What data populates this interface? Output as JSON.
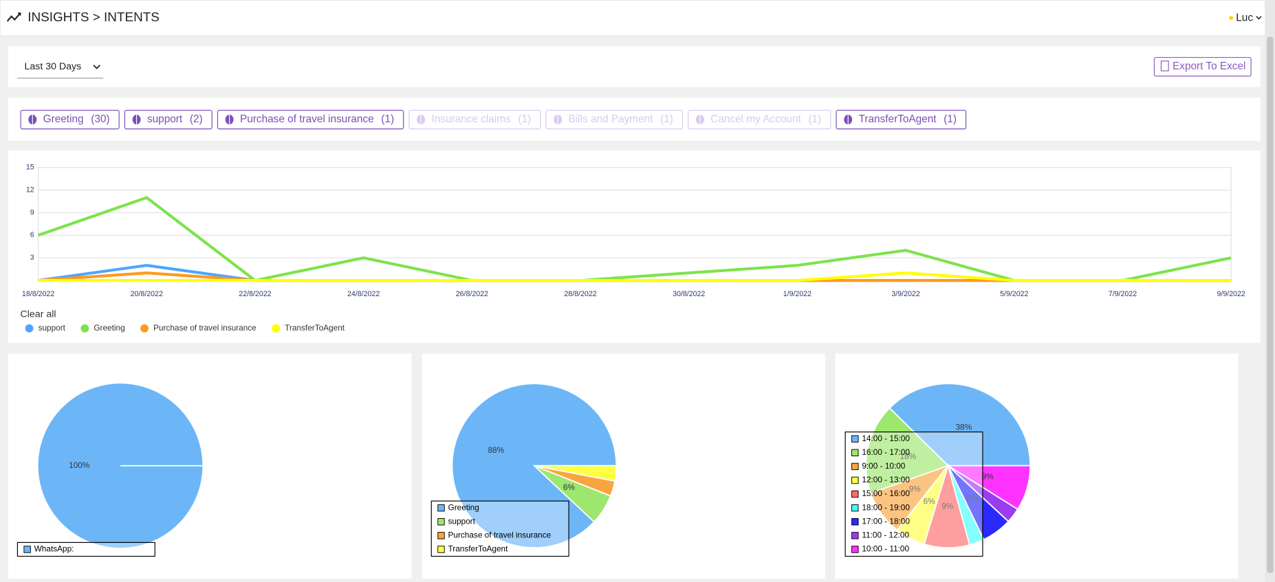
{
  "header": {
    "breadcrumb": "INSIGHTS > INTENTS",
    "user": "Luc"
  },
  "toolbar": {
    "range": "Last 30 Days",
    "export": "Export To Excel"
  },
  "chips": [
    {
      "label": "Greeting",
      "count": "(30)",
      "active": true
    },
    {
      "label": "support",
      "count": "(2)",
      "active": true
    },
    {
      "label": "Purchase of travel insurance",
      "count": "(1)",
      "active": true
    },
    {
      "label": "Insurance claims",
      "count": "(1)",
      "active": false
    },
    {
      "label": "Bills and Payment",
      "count": "(1)",
      "active": false
    },
    {
      "label": "Cancel my Account",
      "count": "(1)",
      "active": false
    },
    {
      "label": "TransferToAgent",
      "count": "(1)",
      "active": true
    }
  ],
  "chart_data": [
    {
      "type": "line",
      "categories": [
        "18/8/2022",
        "20/8/2022",
        "22/8/2022",
        "24/8/2022",
        "26/8/2022",
        "28/8/2022",
        "30/8/2022",
        "1/9/2022",
        "3/9/2022",
        "5/9/2022",
        "7/9/2022",
        "9/9/2022"
      ],
      "series": [
        {
          "name": "support",
          "color": "#4da6ff",
          "values": [
            0,
            2,
            0,
            0,
            0,
            0,
            0,
            0,
            0,
            0,
            0,
            0
          ]
        },
        {
          "name": "Greeting",
          "color": "#7de34a",
          "values": [
            6,
            11,
            0,
            3,
            0,
            0,
            1,
            2,
            4,
            0,
            0,
            3
          ]
        },
        {
          "name": "Purchase of travel insurance",
          "color": "#ff9a1a",
          "values": [
            0,
            1,
            0,
            0,
            0,
            0,
            0,
            0,
            0,
            0,
            0,
            0
          ]
        },
        {
          "name": "TransferToAgent",
          "color": "#ffff00",
          "values": [
            0,
            0,
            0,
            0,
            0,
            0,
            0,
            0,
            1,
            0,
            0,
            0
          ]
        }
      ],
      "ylim": [
        0,
        15
      ],
      "yticks": [
        3,
        6,
        9,
        12,
        15
      ],
      "grid": true,
      "legend_action": "Clear all"
    },
    {
      "type": "pie",
      "categories": [
        "WhatsApp:"
      ],
      "values": [
        100
      ],
      "value_labels": [
        "100%"
      ],
      "colors": [
        "#6cb6f8"
      ]
    },
    {
      "type": "pie",
      "categories": [
        "Greeting",
        "support",
        "Purchase of travel insurance",
        "TransferToAgent"
      ],
      "values": [
        88,
        6,
        3,
        3
      ],
      "value_labels": [
        "88%",
        "6%",
        null,
        null
      ],
      "colors": [
        "#6cb6f8",
        "#9de76e",
        "#f9a53e",
        "#ffff44"
      ]
    },
    {
      "type": "pie",
      "categories": [
        "14:00 - 15:00",
        "16:00 - 17:00",
        "9:00 - 10:00",
        "12:00 - 13:00",
        "15:00 - 16:00",
        "18:00 - 19:00",
        "17:00 - 18:00",
        "11:00 - 12:00",
        "10:00 - 11:00"
      ],
      "values": [
        38,
        18,
        9,
        6,
        9,
        3,
        6,
        3,
        9
      ],
      "value_labels": [
        "38%",
        "18%",
        "9%",
        "6%",
        "9%",
        null,
        "6%",
        null,
        "9%"
      ],
      "colors": [
        "#6cb6f8",
        "#9de76e",
        "#f9a53e",
        "#ffff44",
        "#ff6b6b",
        "#44ffff",
        "#2a2aff",
        "#9b3cf0",
        "#ff33ff"
      ]
    }
  ]
}
